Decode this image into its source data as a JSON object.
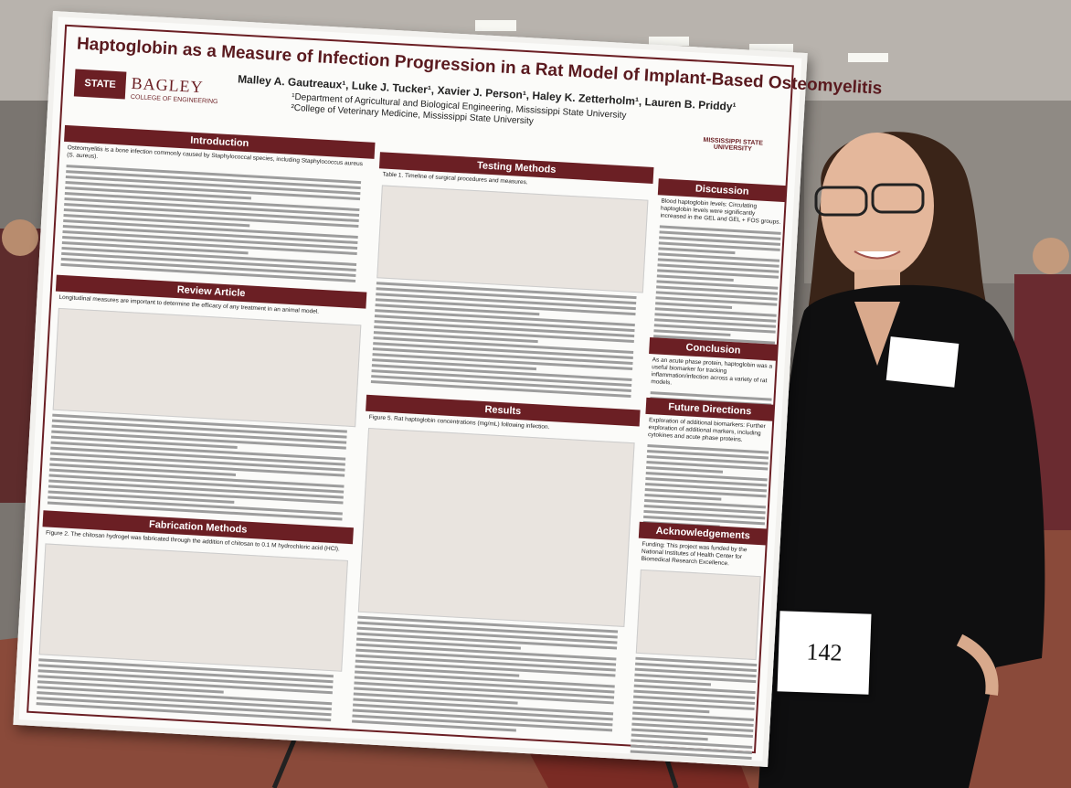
{
  "poster": {
    "title": "Haptoglobin as a Measure of Infection Progression in a Rat Model of Implant-Based Osteomyelitis",
    "authors": "Malley A. Gautreaux¹, Luke J. Tucker¹, Xavier J. Person¹, Haley K. Zetterholm¹, Lauren B. Priddy¹",
    "affiliations": [
      "¹Department of Agricultural and Biological Engineering, Mississippi State University",
      "²College of Veterinary Medicine, Mississippi State University"
    ],
    "logo_left": {
      "mark": "STATE",
      "name": "BAGLEY",
      "sub": "COLLEGE OF ENGINEERING"
    },
    "logo_right": "MISSISSIPPI STATE UNIVERSITY",
    "sections": [
      {
        "heading": "Introduction",
        "text": "Osteomyelitis is a bone infection commonly caused by Staphylococcal species, including Staphylococcus aureus (S. aureus)."
      },
      {
        "heading": "Review Article",
        "text": "Longitudinal measures are important to determine the efficacy of any treatment in an animal model."
      },
      {
        "heading": "Fabrication Methods",
        "text": "Figure 2. The chitosan hydrogel was fabricated through the addition of chitosan to 0.1 M hydrochloric acid (HCl)."
      },
      {
        "heading": "Testing Methods",
        "text": "Table 1. Timeline of surgical procedures and measures."
      },
      {
        "heading": "Results",
        "text": "Figure 5. Rat haptoglobin concentrations (mg/mL) following infection."
      },
      {
        "heading": "Discussion",
        "text": "Blood haptoglobin levels: Circulating haptoglobin levels were significantly increased in the GEL and GEL + FOS groups."
      },
      {
        "heading": "Conclusion",
        "text": "As an acute phase protein, haptoglobin was a useful biomarker for tracking inflammation/infection across a variety of rat models."
      },
      {
        "heading": "Future Directions",
        "text": "Exploration of additional biomarkers: Further exploration of additional markers, including cytokines and acute phase proteins."
      },
      {
        "heading": "Acknowledgements",
        "text": "Funding: This project was funded by the National Institutes of Health Center for Biomedical Research Excellence."
      }
    ]
  },
  "placard": "142"
}
